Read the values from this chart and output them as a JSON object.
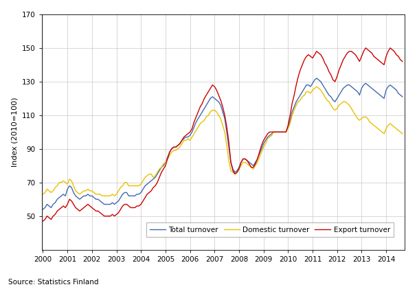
{
  "title": "",
  "ylabel": "Index (2010=100)",
  "source": "Source: Statistics Finland",
  "ylim": [
    30,
    170
  ],
  "yticks": [
    50,
    70,
    90,
    110,
    130,
    150,
    170
  ],
  "x_start_year": 2000,
  "x_end_year": 2014.75,
  "xtick_years": [
    2000,
    2001,
    2002,
    2003,
    2004,
    2005,
    2006,
    2007,
    2008,
    2009,
    2010,
    2011,
    2012,
    2013,
    2014
  ],
  "total_color": "#4169B0",
  "domestic_color": "#E8C000",
  "export_color": "#CC0000",
  "legend_labels": [
    "Total turnover",
    "Domestic turnover",
    "Export turnover"
  ],
  "total_turnover": [
    54,
    55,
    57,
    56,
    55,
    57,
    58,
    60,
    61,
    62,
    63,
    62,
    66,
    68,
    67,
    64,
    62,
    61,
    60,
    61,
    62,
    62,
    63,
    62,
    62,
    61,
    60,
    60,
    59,
    58,
    57,
    57,
    57,
    57,
    58,
    57,
    58,
    59,
    61,
    63,
    64,
    64,
    62,
    62,
    62,
    62,
    63,
    63,
    64,
    66,
    68,
    69,
    70,
    71,
    72,
    73,
    75,
    77,
    79,
    80,
    82,
    85,
    88,
    90,
    91,
    91,
    92,
    93,
    95,
    96,
    97,
    97,
    98,
    100,
    103,
    106,
    108,
    110,
    112,
    114,
    116,
    118,
    120,
    121,
    120,
    119,
    118,
    116,
    112,
    108,
    100,
    91,
    82,
    78,
    76,
    77,
    79,
    82,
    84,
    84,
    83,
    82,
    81,
    80,
    82,
    84,
    87,
    90,
    93,
    95,
    97,
    98,
    99,
    100,
    100,
    100,
    100,
    100,
    100,
    100,
    103,
    107,
    112,
    115,
    118,
    120,
    122,
    124,
    126,
    128,
    128,
    127,
    129,
    131,
    132,
    131,
    130,
    128,
    126,
    124,
    122,
    121,
    119,
    118,
    120,
    122,
    124,
    126,
    127,
    128,
    128,
    127,
    126,
    125,
    124,
    122,
    126,
    128,
    129,
    128,
    127,
    126,
    125,
    124,
    123,
    122,
    121,
    120,
    125,
    127,
    128,
    127,
    126,
    125,
    123,
    122,
    121
  ],
  "domestic_turnover": [
    63,
    64,
    66,
    65,
    64,
    65,
    67,
    68,
    70,
    70,
    71,
    70,
    69,
    72,
    71,
    68,
    65,
    64,
    63,
    64,
    65,
    65,
    66,
    65,
    65,
    64,
    63,
    63,
    63,
    62,
    62,
    62,
    62,
    62,
    63,
    62,
    63,
    65,
    67,
    68,
    70,
    70,
    68,
    68,
    68,
    68,
    68,
    68,
    69,
    71,
    73,
    74,
    75,
    75,
    73,
    74,
    76,
    78,
    79,
    81,
    82,
    84,
    86,
    88,
    89,
    89,
    90,
    91,
    93,
    95,
    95,
    96,
    95,
    97,
    99,
    101,
    103,
    105,
    106,
    107,
    109,
    110,
    112,
    113,
    113,
    112,
    110,
    108,
    104,
    100,
    92,
    83,
    77,
    76,
    75,
    76,
    78,
    80,
    82,
    82,
    81,
    80,
    79,
    78,
    80,
    82,
    85,
    88,
    91,
    93,
    96,
    97,
    98,
    100,
    100,
    100,
    100,
    100,
    100,
    100,
    102,
    105,
    110,
    113,
    116,
    118,
    119,
    121,
    122,
    124,
    124,
    123,
    125,
    126,
    127,
    126,
    125,
    123,
    121,
    119,
    118,
    116,
    114,
    113,
    114,
    116,
    117,
    118,
    118,
    117,
    116,
    114,
    112,
    110,
    108,
    107,
    108,
    109,
    109,
    108,
    106,
    105,
    104,
    103,
    102,
    101,
    100,
    99,
    102,
    104,
    105,
    104,
    103,
    102,
    101,
    100,
    99
  ],
  "export_turnover": [
    47,
    48,
    50,
    49,
    48,
    50,
    51,
    53,
    54,
    55,
    56,
    55,
    57,
    60,
    59,
    57,
    55,
    54,
    53,
    54,
    55,
    56,
    57,
    56,
    55,
    54,
    53,
    53,
    52,
    51,
    50,
    50,
    50,
    50,
    51,
    50,
    51,
    52,
    54,
    56,
    57,
    57,
    56,
    55,
    55,
    55,
    56,
    56,
    57,
    59,
    61,
    63,
    64,
    65,
    67,
    68,
    70,
    73,
    76,
    78,
    80,
    84,
    88,
    90,
    91,
    91,
    92,
    93,
    95,
    97,
    98,
    99,
    100,
    102,
    106,
    109,
    112,
    115,
    117,
    120,
    122,
    124,
    126,
    128,
    127,
    125,
    122,
    119,
    115,
    110,
    103,
    94,
    82,
    77,
    75,
    76,
    78,
    82,
    84,
    84,
    83,
    81,
    79,
    79,
    81,
    84,
    88,
    92,
    95,
    97,
    99,
    100,
    100,
    100,
    100,
    100,
    100,
    100,
    100,
    100,
    104,
    110,
    117,
    122,
    128,
    133,
    137,
    140,
    143,
    145,
    146,
    145,
    144,
    146,
    148,
    147,
    146,
    144,
    141,
    139,
    136,
    134,
    131,
    130,
    133,
    137,
    140,
    143,
    145,
    147,
    148,
    148,
    147,
    146,
    144,
    142,
    145,
    148,
    150,
    149,
    148,
    147,
    145,
    144,
    143,
    142,
    141,
    140,
    145,
    148,
    150,
    149,
    148,
    146,
    145,
    143,
    142
  ]
}
